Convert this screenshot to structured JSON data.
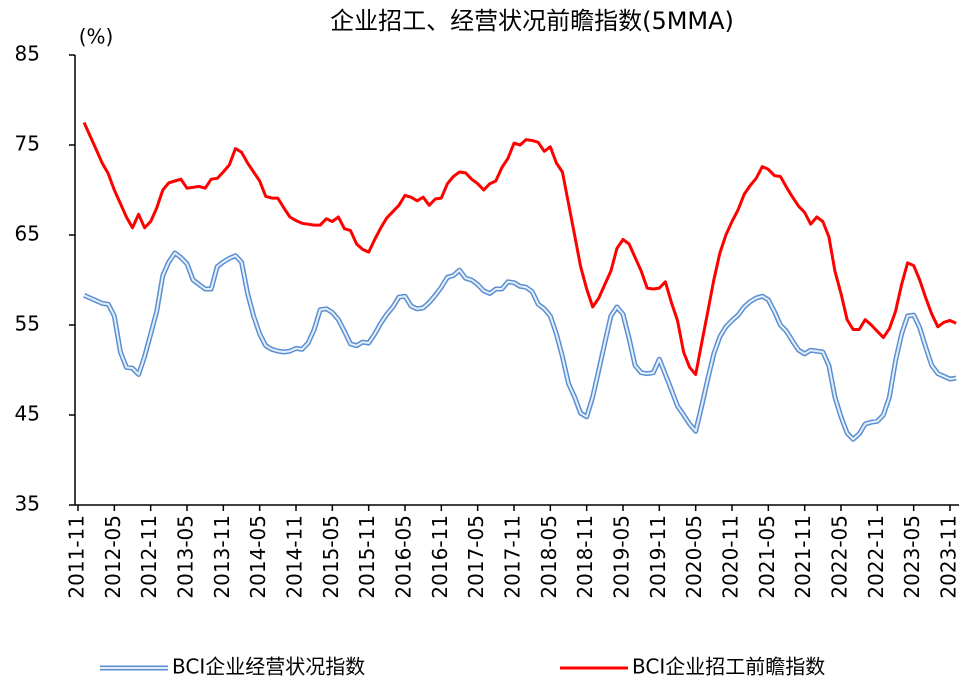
{
  "chart_data": {
    "type": "line",
    "title": "企业招工、经营状况前瞻指数(5MMA)",
    "y_label": "(%)",
    "categories": [
      "2011-11",
      null,
      null,
      null,
      null,
      null,
      "2012-05",
      null,
      null,
      null,
      null,
      null,
      "2012-11",
      null,
      null,
      null,
      null,
      null,
      "2013-05",
      null,
      null,
      null,
      null,
      null,
      "2013-11",
      null,
      null,
      null,
      null,
      null,
      "2014-05",
      null,
      null,
      null,
      null,
      null,
      "2014-11",
      null,
      null,
      null,
      null,
      null,
      "2015-05",
      null,
      null,
      null,
      null,
      null,
      "2015-11",
      null,
      null,
      null,
      null,
      null,
      "2016-05",
      null,
      null,
      null,
      null,
      null,
      "2016-11",
      null,
      null,
      null,
      null,
      null,
      "2017-05",
      null,
      null,
      null,
      null,
      null,
      "2017-11",
      null,
      null,
      null,
      null,
      null,
      "2018-05",
      null,
      null,
      null,
      null,
      null,
      "2018-11",
      null,
      null,
      null,
      null,
      null,
      "2019-05",
      null,
      null,
      null,
      null,
      null,
      "2019-11",
      null,
      null,
      null,
      null,
      null,
      "2020-05",
      null,
      null,
      null,
      null,
      null,
      "2020-11",
      null,
      null,
      null,
      null,
      null,
      "2021-05",
      null,
      null,
      null,
      null,
      null,
      "2021-11",
      null,
      null,
      null,
      null,
      null,
      "2022-05",
      null,
      null,
      null,
      null,
      null,
      "2022-11",
      null,
      null,
      null,
      null,
      null,
      "2023-05",
      null,
      null,
      null,
      null,
      null,
      "2023-11",
      null
    ],
    "series": [
      {
        "name": "BCI企业经营状况指数",
        "color": "#5b8fd0",
        "values": [
          null,
          58.3,
          58,
          57.7,
          57.4,
          57.3,
          56,
          52,
          50.3,
          50.2,
          49.5,
          51.5,
          54,
          56.5,
          60.5,
          62,
          63,
          62.5,
          61.8,
          60,
          59.5,
          59,
          59,
          61.5,
          62,
          62.4,
          62.7,
          62,
          58.5,
          56,
          54,
          52.7,
          52.3,
          52.1,
          52,
          52.1,
          52.4,
          52.3,
          53,
          54.5,
          56.7,
          56.8,
          56.4,
          55.6,
          54.3,
          52.9,
          52.7,
          53.1,
          53,
          54,
          55.2,
          56.2,
          57,
          58.1,
          58.2,
          57.1,
          56.8,
          56.9,
          57.5,
          58.3,
          59.2,
          60.3,
          60.5,
          61.1,
          60.2,
          60,
          59.5,
          58.8,
          58.5,
          59,
          59,
          59.8,
          59.7,
          59.3,
          59.2,
          58.7,
          57.3,
          56.8,
          56,
          54,
          51.5,
          48.5,
          47,
          45.2,
          44.8,
          47,
          50,
          53,
          56,
          57,
          56.2,
          53.5,
          50.5,
          49.7,
          49.6,
          49.7,
          51.2,
          49.5,
          47.8,
          46,
          45,
          44,
          43.2,
          46,
          49,
          51.8,
          53.7,
          54.8,
          55.5,
          56.1,
          57,
          57.6,
          58,
          58.2,
          57.8,
          56.5,
          55,
          54.3,
          53.2,
          52.2,
          51.8,
          52.2,
          52.1,
          52,
          50.5,
          47,
          44.8,
          43,
          42.3,
          42.9,
          44,
          44.2,
          44.3,
          45,
          47,
          51,
          54,
          56,
          56.1,
          54.7,
          52.5,
          50.5,
          49.6,
          49.3,
          49,
          49.1
        ]
      },
      {
        "name": "BCI企业招工前瞻指数",
        "color": "#ff0000",
        "values": [
          null,
          77.5,
          76,
          74.5,
          73,
          71.8,
          70,
          68.5,
          67,
          65.8,
          67.3,
          65.8,
          66.5,
          68,
          70,
          70.8,
          71,
          71.2,
          70.2,
          70.3,
          70.4,
          70.2,
          71.2,
          71.3,
          72,
          72.8,
          74.6,
          74.2,
          73,
          72,
          71,
          69.3,
          69.1,
          69.1,
          68,
          67,
          66.6,
          66.3,
          66.2,
          66.1,
          66.1,
          66.8,
          66.5,
          67,
          65.7,
          65.5,
          64,
          63.4,
          63.1,
          64.5,
          65.8,
          66.9,
          67.6,
          68.3,
          69.4,
          69.2,
          68.8,
          69.2,
          68.3,
          69,
          69.1,
          70.7,
          71.5,
          72,
          71.9,
          71.2,
          70.7,
          70,
          70.7,
          71,
          72.5,
          73.5,
          75.2,
          75,
          75.6,
          75.5,
          75.3,
          74.3,
          74.8,
          73,
          72,
          68.5,
          65,
          61.5,
          59,
          57,
          58,
          59.5,
          61,
          63.5,
          64.5,
          64,
          62.5,
          61,
          59.1,
          59,
          59.1,
          59.8,
          57.5,
          55.5,
          52,
          50.3,
          49.5,
          53,
          56.5,
          60,
          63,
          65,
          66.5,
          67.8,
          69.5,
          70.5,
          71.3,
          72.6,
          72.3,
          71.6,
          71.5,
          70.3,
          69.2,
          68.2,
          67.5,
          66.2,
          67,
          66.5,
          64.8,
          61,
          58.5,
          55.6,
          54.5,
          54.5,
          55.6,
          55,
          54.3,
          53.6,
          54.6,
          56.5,
          59.5,
          61.9,
          61.6,
          60,
          58,
          56.2,
          54.8,
          55.3,
          55.5,
          55.2
        ]
      }
    ],
    "ylim": [
      35,
      85
    ],
    "yticks": [
      35,
      45,
      55,
      65,
      75,
      85
    ],
    "grid": false,
    "legend": "bottom"
  }
}
